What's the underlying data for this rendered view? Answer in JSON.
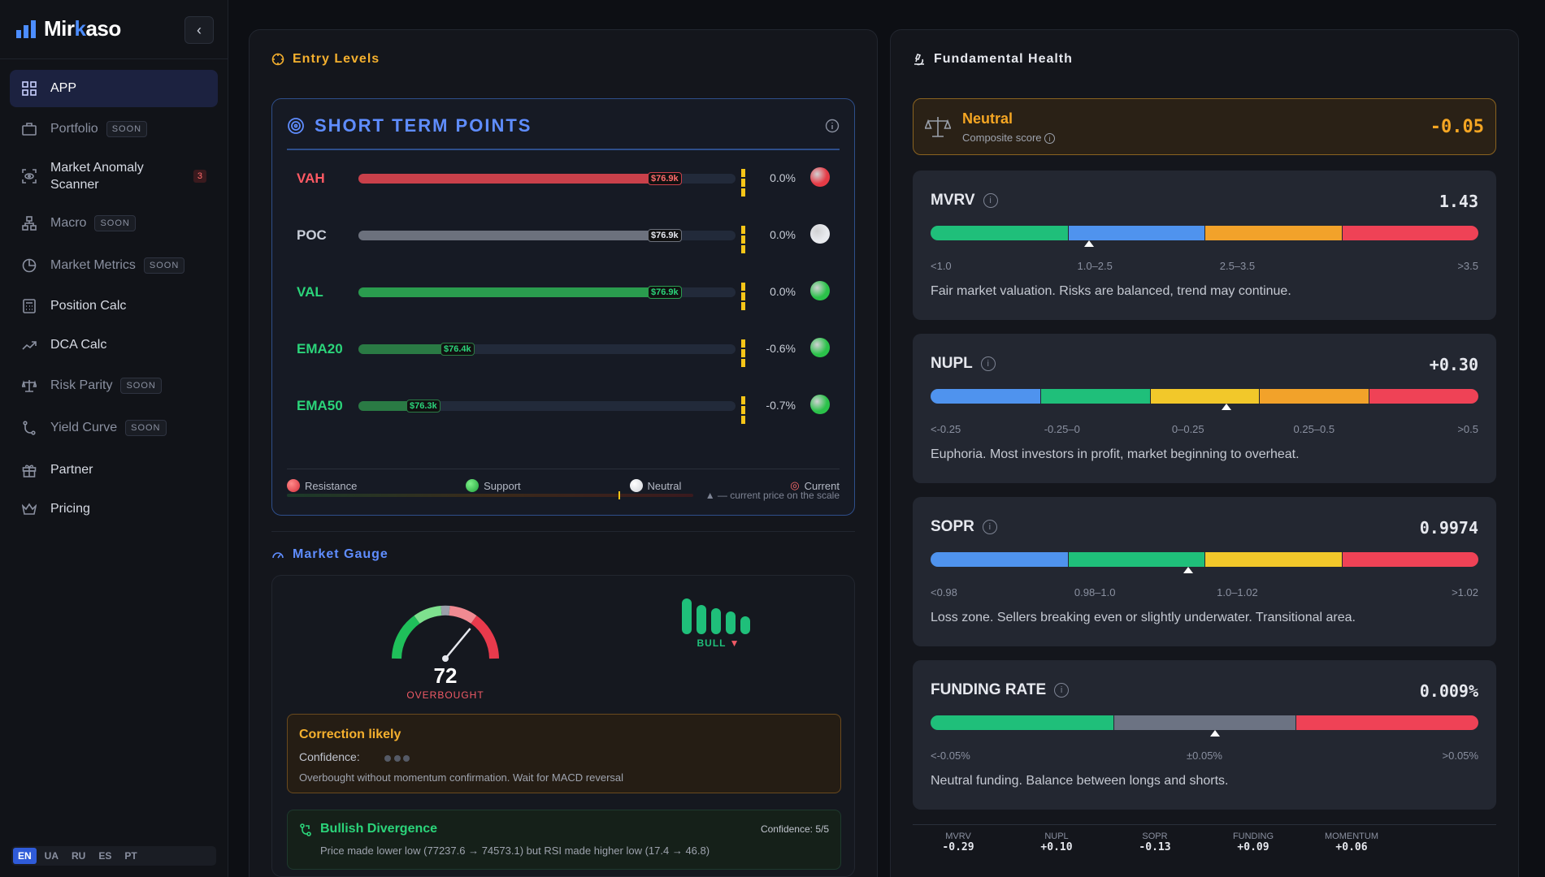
{
  "brand": {
    "name_a": "Mir",
    "name_k": "k",
    "name_b": "aso"
  },
  "nav": {
    "app": "APP",
    "portfolio": "Portfolio",
    "anomaly_1": "Market Anomaly",
    "anomaly_2": "Scanner",
    "anomaly_badge": "3",
    "macro": "Macro",
    "market_metrics": "Market Metrics",
    "position_calc": "Position Calc",
    "dca_calc": "DCA Calc",
    "risk_parity": "Risk Parity",
    "yield_curve": "Yield Curve",
    "partner": "Partner",
    "pricing": "Pricing",
    "soon": "SOON"
  },
  "languages": [
    "EN",
    "UA",
    "RU",
    "ES",
    "PT"
  ],
  "entry": {
    "title": "Entry Levels",
    "stp_title": "SHORT TERM POINTS",
    "levels": [
      {
        "name": "VAH",
        "tag": "$76.9k",
        "pct": "0.0%",
        "fill": 0.81,
        "color": "#c9404a",
        "name_color": "#ff5a64",
        "dot": "#e53b46",
        "tag_color": "#ff6b6b"
      },
      {
        "name": "POC",
        "tag": "$76.9k",
        "pct": "0.0%",
        "fill": 0.81,
        "color": "#6c717d",
        "name_color": "#c9ced9",
        "dot": "#e8eaee",
        "tag_color": "#e6e8ee"
      },
      {
        "name": "VAL",
        "tag": "$76.9k",
        "pct": "0.0%",
        "fill": 0.81,
        "color": "#2a9c4e",
        "name_color": "#2bd47a",
        "dot": "#2bc24a",
        "tag_color": "#2bd47a"
      },
      {
        "name": "EMA20",
        "tag": "$76.4k",
        "pct": "-0.6%",
        "fill": 0.26,
        "color": "#2a7a44",
        "name_color": "#2bd47a",
        "dot": "#2bc24a",
        "tag_color": "#2bd47a"
      },
      {
        "name": "EMA50",
        "tag": "$76.3k",
        "pct": "-0.7%",
        "fill": 0.17,
        "color": "#2a7a44",
        "name_color": "#2bd47a",
        "dot": "#2bc24a",
        "tag_color": "#2bd47a"
      }
    ],
    "legend": {
      "resistance": "Resistance",
      "support": "Support",
      "neutral": "Neutral",
      "current": "Current"
    },
    "scale_note": "▲ — current price on the scale"
  },
  "gauge": {
    "title": "Market Gauge",
    "value": "72",
    "value_fraction": 0.72,
    "label": "OVERBOUGHT",
    "bull_label": "BULL",
    "correction_title": "Correction likely",
    "confidence_label": "Confidence:",
    "correction_desc": "Overbought without momentum confirmation. Wait for MACD reversal",
    "divergence_title": "Bullish Divergence",
    "divergence_conf": "Confidence: 5/5",
    "divergence_desc": "Price made lower low (77237.6 → 74573.1) but RSI made higher low (17.4 → 46.8)"
  },
  "health": {
    "title": "Fundamental Health",
    "status": "Neutral",
    "composite": "Composite score",
    "score": "-0.05",
    "metrics": [
      {
        "name": "MVRV",
        "value": "1.43",
        "labels": [
          "<1.0",
          "1.0–2.5",
          "2.5–3.5",
          ">3.5"
        ],
        "segments": [
          "#1fbf7a",
          "#4f93ee",
          "#f2a22a",
          "#ef4256"
        ],
        "desc": "Fair market valuation. Risks are balanced, trend may continue."
      },
      {
        "name": "NUPL",
        "value": "+0.30",
        "labels": [
          "<-0.25",
          "-0.25–0",
          "0–0.25",
          "0.25–0.5",
          ">0.5"
        ],
        "segments": [
          "#4f93ee",
          "#1fbf7a",
          "#f2c82a",
          "#f2a22a",
          "#ef4256"
        ],
        "desc": "Euphoria. Most investors in profit, market beginning to overheat."
      },
      {
        "name": "SOPR",
        "value": "0.9974",
        "labels": [
          "<0.98",
          "0.98–1.0",
          "1.0–1.02",
          ">1.02"
        ],
        "segments": [
          "#4f93ee",
          "#1fbf7a",
          "#f2c82a",
          "#ef4256"
        ],
        "desc": "Loss zone. Sellers breaking even or slightly underwater. Transitional area."
      },
      {
        "name": "FUNDING RATE",
        "value": "0.009%",
        "labels": [
          "<-0.05%",
          "±0.05%",
          ">0.05%"
        ],
        "segments": [
          "#1fbf7a",
          "#6c7383",
          "#ef4256"
        ],
        "desc": "Neutral funding. Balance between longs and shorts."
      }
    ],
    "summary": [
      {
        "k": "MVRV",
        "v": "-0.29"
      },
      {
        "k": "NUPL",
        "v": "+0.10"
      },
      {
        "k": "SOPR",
        "v": "-0.13"
      },
      {
        "k": "FUNDING",
        "v": "+0.09"
      },
      {
        "k": "MOMENTUM",
        "v": "+0.06"
      }
    ]
  }
}
